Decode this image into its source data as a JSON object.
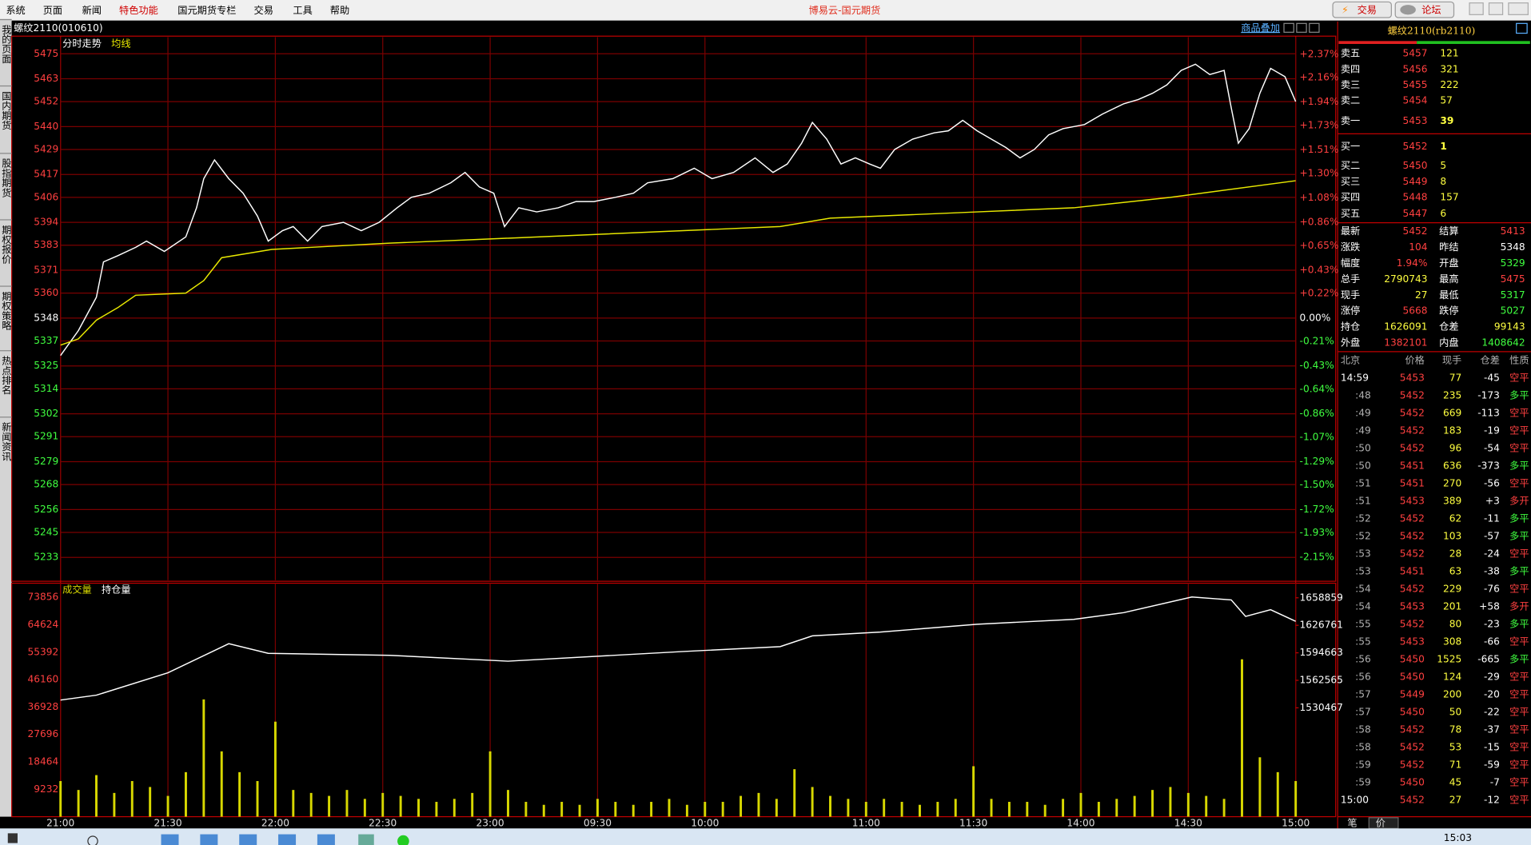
{
  "menu": [
    "系统",
    "页面",
    "新闻",
    "特色功能",
    "国元期货专栏",
    "交易",
    "工具",
    "帮助"
  ],
  "app_title": "博易云-国元期货",
  "buttons": [
    "交易",
    "论坛"
  ],
  "sidebar": [
    "我的页面",
    "国内期货",
    "股指期货",
    "期权报价",
    "期权策略",
    "热点排名",
    "新闻资讯"
  ],
  "chart_header": {
    "symbol": "螺纹2110(010610)",
    "overlay": "商品叠加"
  },
  "chart_data": [
    {
      "type": "line",
      "grid": true,
      "xlim": [
        0,
        345
      ],
      "ylim": [
        5222,
        5483
      ],
      "yticks": [
        5475,
        5463,
        5452,
        5440,
        5429,
        5417,
        5406,
        5394,
        5383,
        5371,
        5360,
        5348,
        5337,
        5325,
        5314,
        5302,
        5291,
        5279,
        5268,
        5256,
        5245,
        5233
      ],
      "y2lim": [
        -2.356,
        2.524
      ],
      "y2ticks": [
        {
          "value": 2.37,
          "label": "+2.37%"
        },
        {
          "value": 2.16,
          "label": "+2.16%"
        },
        {
          "value": 1.94,
          "label": "+1.94%"
        },
        {
          "value": 1.73,
          "label": "+1.73%"
        },
        {
          "value": 1.51,
          "label": "+1.51%"
        },
        {
          "value": 1.3,
          "label": "+1.30%"
        },
        {
          "value": 1.08,
          "label": "+1.08%"
        },
        {
          "value": 0.86,
          "label": "+0.86%"
        },
        {
          "value": 0.65,
          "label": "+0.65%"
        },
        {
          "value": 0.43,
          "label": "+0.43%"
        },
        {
          "value": 0.22,
          "label": "+0.22%"
        },
        {
          "value": 0,
          "label": "0.00%"
        },
        {
          "value": -0.21,
          "label": "-0.21%"
        },
        {
          "value": -0.43,
          "label": "-0.43%"
        },
        {
          "value": -0.64,
          "label": "-0.64%"
        },
        {
          "value": -0.86,
          "label": "-0.86%"
        },
        {
          "value": -1.07,
          "label": "-1.07%"
        },
        {
          "value": -1.29,
          "label": "-1.29%"
        },
        {
          "value": -1.5,
          "label": "-1.50%"
        },
        {
          "value": -1.72,
          "label": "-1.72%"
        },
        {
          "value": -1.93,
          "label": "-1.93%"
        },
        {
          "value": -2.15,
          "label": "-2.15%"
        }
      ],
      "series": [
        {
          "name": "分时走势",
          "color": "#ffffff",
          "x": [
            0,
            5,
            10,
            12,
            16,
            21,
            24,
            29,
            35,
            38,
            40,
            43,
            47,
            51,
            55,
            58,
            62,
            65,
            69,
            73,
            79,
            84,
            89,
            94,
            98,
            103,
            109,
            113,
            117,
            121,
            124,
            128,
            133,
            139,
            144,
            149,
            155,
            160,
            164,
            171,
            177,
            182,
            188,
            194,
            199,
            203,
            207,
            210,
            214,
            218,
            222,
            226,
            229,
            233,
            238,
            244,
            248,
            252,
            256,
            260,
            264,
            268,
            272,
            276,
            280,
            286,
            291,
            297,
            301,
            305,
            309,
            313,
            317,
            321,
            325,
            327,
            329,
            332,
            335,
            338,
            342,
            345
          ],
          "values": [
            5330,
            5342,
            5358,
            5375,
            5378,
            5382,
            5385,
            5380,
            5387,
            5401,
            5415,
            5424,
            5415,
            5408,
            5397,
            5385,
            5390,
            5392,
            5385,
            5392,
            5394,
            5390,
            5394,
            5401,
            5406,
            5408,
            5413,
            5418,
            5411,
            5408,
            5392,
            5401,
            5399,
            5401,
            5404,
            5404,
            5406,
            5408,
            5413,
            5415,
            5420,
            5415,
            5418,
            5425,
            5418,
            5422,
            5432,
            5442,
            5434,
            5422,
            5425,
            5422,
            5420,
            5429,
            5434,
            5437,
            5438,
            5443,
            5438,
            5434,
            5430,
            5425,
            5429,
            5436,
            5439,
            5441,
            5446,
            5451,
            5453,
            5456,
            5460,
            5467,
            5470,
            5465,
            5467,
            5449,
            5432,
            5439,
            5456,
            5468,
            5464,
            5452
          ]
        },
        {
          "name": "均线",
          "color": "#e8e800",
          "x": [
            0,
            5,
            10,
            16,
            21,
            35,
            40,
            45,
            59,
            92,
            120,
            174,
            201,
            215,
            256,
            283,
            310,
            345
          ],
          "values": [
            5335,
            5338,
            5347,
            5353,
            5359,
            5360,
            5366,
            5377,
            5381,
            5384,
            5386,
            5390,
            5392,
            5396,
            5399,
            5401,
            5406,
            5414
          ]
        }
      ]
    },
    {
      "type": "bar",
      "grid": true,
      "xlim": [
        0,
        345
      ],
      "ylim": [
        0,
        78620
      ],
      "yticks": [
        73856,
        64624,
        55392,
        46160,
        36928,
        27696,
        18464,
        9232
      ],
      "y2lim": [
        1403440,
        1675871
      ],
      "y2ticks": [
        1658859,
        1626761,
        1594663,
        1562565,
        1530467
      ],
      "xticks": [
        {
          "value": 0,
          "label": "21:00"
        },
        {
          "value": 30,
          "label": "21:30"
        },
        {
          "value": 60,
          "label": "22:00"
        },
        {
          "value": 90,
          "label": "22:30"
        },
        {
          "value": 120,
          "label": "23:00"
        },
        {
          "value": 150,
          "label": "09:30"
        },
        {
          "value": 180,
          "label": "10:00"
        },
        {
          "value": 225,
          "label": "11:00"
        },
        {
          "value": 255,
          "label": "11:30"
        },
        {
          "value": 285,
          "label": "14:00"
        },
        {
          "value": 315,
          "label": "14:30"
        },
        {
          "value": 345,
          "label": "15:00"
        }
      ],
      "series": [
        {
          "name": "成交量",
          "color": "#d8d800",
          "x": [
            0,
            5,
            10,
            15,
            20,
            25,
            30,
            35,
            40,
            45,
            50,
            55,
            60,
            65,
            70,
            75,
            80,
            85,
            90,
            95,
            100,
            105,
            110,
            115,
            120,
            125,
            130,
            135,
            140,
            145,
            150,
            155,
            160,
            165,
            170,
            175,
            180,
            185,
            190,
            195,
            200,
            205,
            210,
            215,
            220,
            225,
            230,
            235,
            240,
            245,
            250,
            255,
            260,
            265,
            270,
            275,
            280,
            285,
            290,
            295,
            300,
            305,
            310,
            315,
            320,
            325,
            330,
            335,
            340,
            345
          ],
          "values": [
            12000,
            9000,
            14000,
            8000,
            12000,
            10000,
            7000,
            15000,
            39500,
            22000,
            15000,
            12000,
            32000,
            9000,
            8000,
            7000,
            9000,
            6000,
            8000,
            7000,
            6000,
            5000,
            6000,
            8000,
            22000,
            9000,
            5000,
            4000,
            5000,
            4000,
            6000,
            5000,
            4000,
            5000,
            6000,
            4000,
            5000,
            5000,
            7000,
            8000,
            6000,
            16000,
            10000,
            7000,
            6000,
            5000,
            6000,
            5000,
            4000,
            5000,
            6000,
            17000,
            6000,
            5000,
            5000,
            4000,
            6000,
            8000,
            5000,
            6000,
            7000,
            9000,
            10000,
            8000,
            7000,
            6000,
            53000,
            20000,
            15000,
            12000
          ]
        },
        {
          "name": "持仓量",
          "color": "#ffffff",
          "axis": "y2",
          "x": [
            0,
            10,
            30,
            47,
            58,
            92,
            125,
            174,
            201,
            210,
            229,
            256,
            283,
            297,
            316,
            327,
            331,
            338,
            345
          ],
          "values": [
            1539540,
            1545200,
            1571300,
            1605300,
            1594000,
            1591700,
            1584900,
            1596200,
            1601900,
            1614400,
            1618900,
            1628000,
            1633700,
            1641600,
            1659800,
            1656400,
            1637100,
            1645000,
            1631400
          ]
        }
      ]
    }
  ],
  "quote": {
    "title": "螺纹2110(rb2110)",
    "asks": [
      {
        "label": "卖五",
        "price": 5457,
        "volume": 121
      },
      {
        "label": "卖四",
        "price": 5456,
        "volume": 321
      },
      {
        "label": "卖三",
        "price": 5455,
        "volume": 222
      },
      {
        "label": "卖二",
        "price": 5454,
        "volume": 57
      },
      {
        "label": "卖一",
        "price": 5453,
        "volume": 39
      }
    ],
    "bids": [
      {
        "label": "买一",
        "price": 5452,
        "volume": 1
      },
      {
        "label": "买二",
        "price": 5450,
        "volume": 5
      },
      {
        "label": "买三",
        "price": 5449,
        "volume": 8
      },
      {
        "label": "买四",
        "price": 5448,
        "volume": 157
      },
      {
        "label": "买五",
        "price": 5447,
        "volume": 6
      }
    ],
    "stats": [
      [
        {
          "label": "最新",
          "value": 5452,
          "color": "#ff4040"
        },
        {
          "label": "结算",
          "value": 5413,
          "color": "#ff4040"
        }
      ],
      [
        {
          "label": "涨跌",
          "value": 104,
          "color": "#ff4040"
        },
        {
          "label": "昨结",
          "value": 5348,
          "color": "#ffffff"
        }
      ],
      [
        {
          "label": "幅度",
          "value": {
            "value": 1.94,
            "label": "1.94%"
          },
          "color": "#ff4040"
        },
        {
          "label": "开盘",
          "value": 5329,
          "color": "#40ff40"
        }
      ],
      [
        {
          "label": "总手",
          "value": 2790743,
          "color": "#ffff40"
        },
        {
          "label": "最高",
          "value": 5475,
          "color": "#ff4040"
        }
      ],
      [
        {
          "label": "现手",
          "value": 27,
          "color": "#ffff40"
        },
        {
          "label": "最低",
          "value": 5317,
          "color": "#40ff40"
        }
      ],
      [
        {
          "label": "涨停",
          "value": 5668,
          "color": "#ff4040"
        },
        {
          "label": "跌停",
          "value": 5027,
          "color": "#40ff40"
        }
      ],
      [
        {
          "label": "持仓",
          "value": 1626091,
          "color": "#ffff40"
        },
        {
          "label": "仓差",
          "value": 99143,
          "color": "#ffff40"
        }
      ],
      [
        {
          "label": "外盘",
          "value": 1382101,
          "color": "#ff4040"
        },
        {
          "label": "内盘",
          "value": 1408642,
          "color": "#40ff40"
        }
      ]
    ],
    "ticks_header": [
      "北京",
      "价格",
      "现手",
      "仓差",
      "性质"
    ],
    "ticks": [
      {
        "time": "14:59",
        "price": 5453,
        "volume": 77,
        "oi_change": -45,
        "type": "空平",
        "type_color": "#ff4040"
      },
      {
        "time": ":48",
        "price": 5452,
        "volume": 235,
        "oi_change": -173,
        "type": "多平",
        "type_color": "#40ff40"
      },
      {
        "time": ":49",
        "price": 5452,
        "volume": 669,
        "oi_change": -113,
        "type": "空平",
        "type_color": "#ff4040"
      },
      {
        "time": ":49",
        "price": 5452,
        "volume": 183,
        "oi_change": -19,
        "type": "空平",
        "type_color": "#ff4040"
      },
      {
        "time": ":50",
        "price": 5452,
        "volume": 96,
        "oi_change": -54,
        "type": "空平",
        "type_color": "#ff4040"
      },
      {
        "time": ":50",
        "price": 5451,
        "volume": 636,
        "oi_change": -373,
        "type": "多平",
        "type_color": "#40ff40"
      },
      {
        "time": ":51",
        "price": 5451,
        "volume": 270,
        "oi_change": -56,
        "type": "空平",
        "type_color": "#ff4040"
      },
      {
        "time": ":51",
        "price": 5453,
        "volume": 389,
        "oi_change": {
          "value": 3,
          "label": "+3"
        },
        "type": "多开",
        "type_color": "#ff4040"
      },
      {
        "time": ":52",
        "price": 5452,
        "volume": 62,
        "oi_change": -11,
        "type": "多平",
        "type_color": "#40ff40"
      },
      {
        "time": ":52",
        "price": 5452,
        "volume": 103,
        "oi_change": -57,
        "type": "多平",
        "type_color": "#40ff40"
      },
      {
        "time": ":53",
        "price": 5452,
        "volume": 28,
        "oi_change": -24,
        "type": "空平",
        "type_color": "#ff4040"
      },
      {
        "time": ":53",
        "price": 5451,
        "volume": 63,
        "oi_change": -38,
        "type": "多平",
        "type_color": "#40ff40"
      },
      {
        "time": ":54",
        "price": 5452,
        "volume": 229,
        "oi_change": -76,
        "type": "空平",
        "type_color": "#ff4040"
      },
      {
        "time": ":54",
        "price": 5453,
        "volume": 201,
        "oi_change": {
          "value": 58,
          "label": "+58"
        },
        "type": "多开",
        "type_color": "#ff4040"
      },
      {
        "time": ":55",
        "price": 5452,
        "volume": 80,
        "oi_change": -23,
        "type": "多平",
        "type_color": "#40ff40"
      },
      {
        "time": ":55",
        "price": 5453,
        "volume": 308,
        "oi_change": -66,
        "type": "空平",
        "type_color": "#ff4040"
      },
      {
        "time": ":56",
        "price": 5450,
        "volume": 1525,
        "oi_change": -665,
        "type": "多平",
        "type_color": "#40ff40"
      },
      {
        "time": ":56",
        "price": 5450,
        "volume": 124,
        "oi_change": -29,
        "type": "空平",
        "type_color": "#ff4040"
      },
      {
        "time": ":57",
        "price": 5449,
        "volume": 200,
        "oi_change": -20,
        "type": "空平",
        "type_color": "#ff4040"
      },
      {
        "time": ":57",
        "price": 5450,
        "volume": 50,
        "oi_change": -22,
        "type": "空平",
        "type_color": "#ff4040"
      },
      {
        "time": ":58",
        "price": 5452,
        "volume": 78,
        "oi_change": -37,
        "type": "空平",
        "type_color": "#ff4040"
      },
      {
        "time": ":58",
        "price": 5452,
        "volume": 53,
        "oi_change": -15,
        "type": "空平",
        "type_color": "#ff4040"
      },
      {
        "time": ":59",
        "price": 5452,
        "volume": 71,
        "oi_change": -59,
        "type": "空平",
        "type_color": "#ff4040"
      },
      {
        "time": ":59",
        "price": 5450,
        "volume": 45,
        "oi_change": -7,
        "type": "空平",
        "type_color": "#ff4040"
      },
      {
        "time": "15:00",
        "price": 5452,
        "volume": 27,
        "oi_change": -12,
        "type": "空平",
        "type_color": "#ff4040"
      }
    ],
    "tabs": [
      "笔",
      "价"
    ]
  },
  "taskbar_time": "15:03"
}
